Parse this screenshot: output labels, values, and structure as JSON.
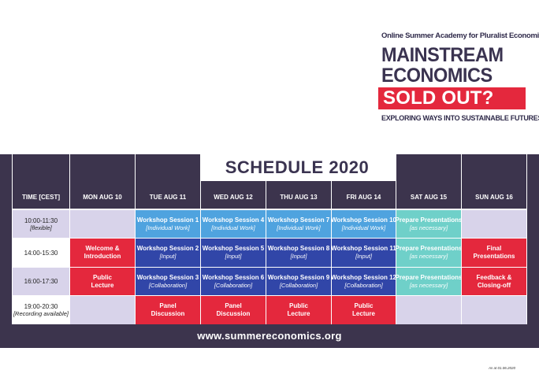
{
  "header": {
    "academy": "Online Summer Academy for Pluralist Economics",
    "title_line1": "MAINSTREAM",
    "title_line2": "ECONOMICS",
    "sold_out": "SOLD OUT?",
    "tagline": "EXPLORING WAYS INTO SUSTAINABLE FUTURES"
  },
  "schedule": {
    "title": "SCHEDULE 2020",
    "columns": [
      "TIME [CEST]",
      "MON AUG 10",
      "TUE AUG 11",
      "WED AUG 12",
      "THU AUG 13",
      "FRI AUG 14",
      "SAT AUG 15",
      "SUN AUG 16"
    ],
    "rows": [
      {
        "time": "10:00-11:30",
        "note": "[flexible]",
        "cells": [
          null,
          {
            "l1": "Workshop Session 1",
            "l2": "[Individual Work]",
            "color": "lblue"
          },
          {
            "l1": "Workshop Session 4",
            "l2": "[Individual Work]",
            "color": "lblue"
          },
          {
            "l1": "Workshop Session 7",
            "l2": "[Individual Work]",
            "color": "lblue"
          },
          {
            "l1": "Workshop Session 10",
            "l2": "[Individual Work]",
            "color": "lblue"
          },
          {
            "l1": "Prepare Presentations",
            "l2": "[as necessary]",
            "color": "teal"
          },
          null
        ]
      },
      {
        "time": "14:00-15:30",
        "note": "",
        "cells": [
          {
            "l1": "Welcome &",
            "l2": "Introduction",
            "color": "red"
          },
          {
            "l1": "Workshop Session 2",
            "l2": "[Input]",
            "color": "dblue"
          },
          {
            "l1": "Workshop Session 5",
            "l2": "[Input]",
            "color": "dblue"
          },
          {
            "l1": "Workshop Session 8",
            "l2": "[Input]",
            "color": "dblue"
          },
          {
            "l1": "Workshop Session 11",
            "l2": "[Input]",
            "color": "dblue"
          },
          {
            "l1": "Prepare Presentations",
            "l2": "[as necessary]",
            "color": "teal"
          },
          {
            "l1": "Final",
            "l2": "Presentations",
            "color": "red"
          }
        ]
      },
      {
        "time": "16:00-17:30",
        "note": "",
        "cells": [
          {
            "l1": "Public",
            "l2": "Lecture",
            "color": "red"
          },
          {
            "l1": "Workshop Session 3",
            "l2": "[Collaboration]",
            "color": "dblue"
          },
          {
            "l1": "Workshop Session 6",
            "l2": "[Collaboration]",
            "color": "dblue"
          },
          {
            "l1": "Workshop Session 9",
            "l2": "[Collaboration]",
            "color": "dblue"
          },
          {
            "l1": "Workshop Session 12",
            "l2": "[Collaboration]",
            "color": "dblue"
          },
          {
            "l1": "Prepare Presentations",
            "l2": "[as necessary]",
            "color": "teal"
          },
          {
            "l1": "Feedback &",
            "l2": "Closing-off",
            "color": "red"
          }
        ]
      },
      {
        "time": "19:00-20:30",
        "note": "[Recording available]",
        "cells": [
          null,
          {
            "l1": "Panel",
            "l2": "Discussion",
            "color": "red"
          },
          {
            "l1": "Panel",
            "l2": "Discussion",
            "color": "red"
          },
          {
            "l1": "Public",
            "l2": "Lecture",
            "color": "red"
          },
          {
            "l1": "Public",
            "l2": "Lecture",
            "color": "red"
          },
          null,
          null
        ]
      }
    ]
  },
  "footer": {
    "url": "www.summereconomics.org",
    "as_of": "As at 01.06.2020"
  },
  "colors": {
    "dark": "#3c344d",
    "red": "#e4283d",
    "light_blue": "#4fa3df",
    "dark_blue": "#3146a8",
    "teal": "#6fd0c9",
    "lavender": "#d8d3ea"
  }
}
